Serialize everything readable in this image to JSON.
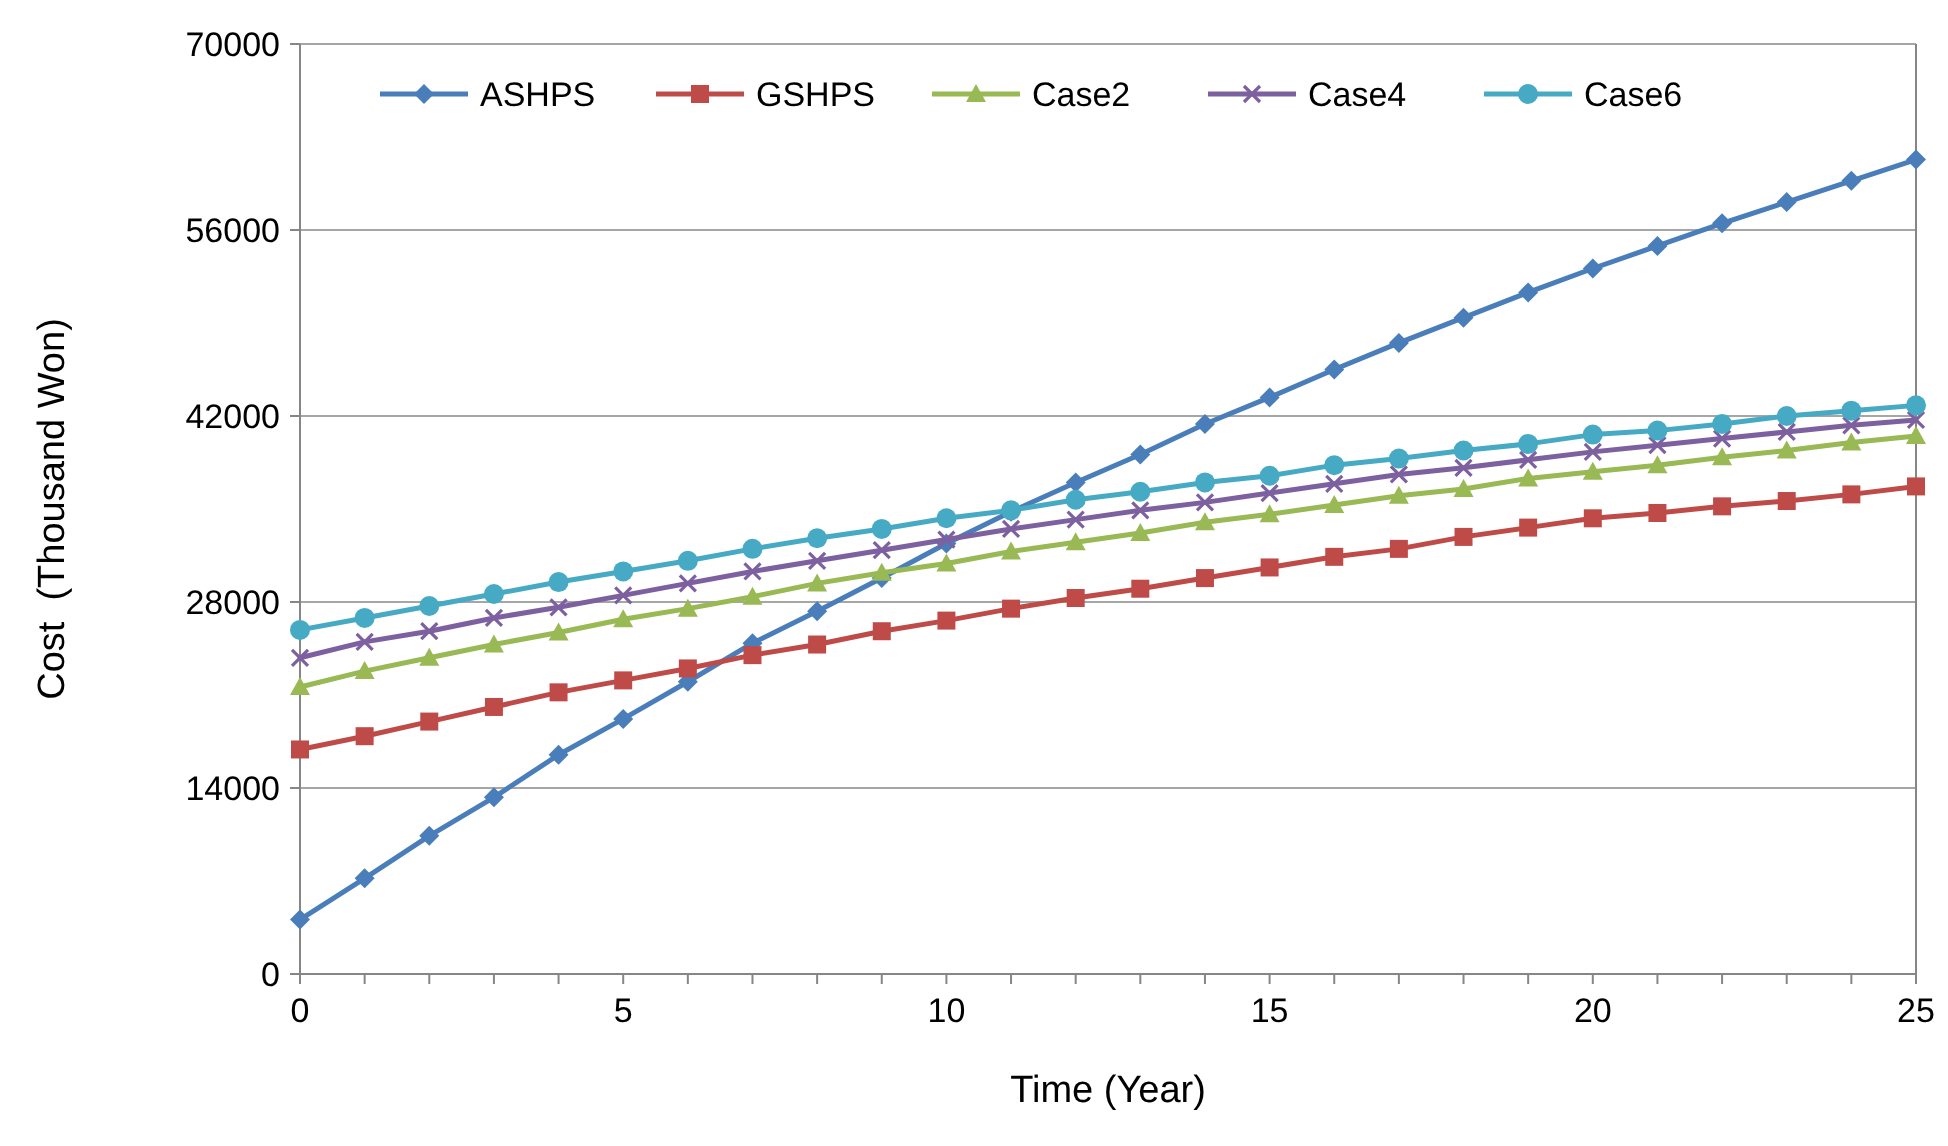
{
  "chart_data": {
    "type": "line",
    "xlabel": "Time (Year)",
    "ylabel": "Cost  (Thousand Won)",
    "x": [
      0,
      1,
      2,
      3,
      4,
      5,
      6,
      7,
      8,
      9,
      10,
      11,
      12,
      13,
      14,
      15,
      16,
      17,
      18,
      19,
      20,
      21,
      22,
      23,
      24,
      25
    ],
    "xlim": [
      0,
      25
    ],
    "xticks": [
      0,
      5,
      10,
      15,
      20,
      25
    ],
    "ylim": [
      0,
      70000
    ],
    "yticks": [
      0,
      14000,
      28000,
      42000,
      56000,
      70000
    ],
    "grid": "y",
    "legend": "top",
    "line_style": "solid",
    "series": [
      {
        "name": "ASHPS",
        "color": "#4a7ebb",
        "marker": "diamond",
        "values": [
          4100,
          7200,
          10400,
          13300,
          16500,
          19200,
          22000,
          24900,
          27300,
          29800,
          32400,
          34800,
          37000,
          39100,
          41400,
          43400,
          45500,
          47500,
          49400,
          51300,
          53100,
          54800,
          56500,
          58100,
          59700,
          61300
        ]
      },
      {
        "name": "GSHPS",
        "color": "#be4b48",
        "marker": "square",
        "values": [
          16900,
          17900,
          19000,
          20100,
          21200,
          22100,
          23000,
          24000,
          24800,
          25800,
          26600,
          27500,
          28300,
          29000,
          29800,
          30600,
          31400,
          32000,
          32900,
          33600,
          34300,
          34700,
          35200,
          35600,
          36100,
          36700
        ]
      },
      {
        "name": "Case2",
        "color": "#98b954",
        "marker": "triangle",
        "values": [
          21600,
          22800,
          23800,
          24800,
          25700,
          26700,
          27500,
          28400,
          29400,
          30200,
          30900,
          31800,
          32500,
          33200,
          34000,
          34600,
          35300,
          36000,
          36500,
          37300,
          37800,
          38300,
          38900,
          39400,
          40000,
          40500
        ]
      },
      {
        "name": "Case4",
        "color": "#7d60a0",
        "marker": "cross",
        "values": [
          23800,
          25000,
          25800,
          26800,
          27600,
          28500,
          29400,
          30300,
          31100,
          31900,
          32700,
          33500,
          34200,
          34900,
          35500,
          36200,
          36900,
          37600,
          38100,
          38700,
          39300,
          39800,
          40300,
          40800,
          41300,
          41700
        ]
      },
      {
        "name": "Case6",
        "color": "#46aac5",
        "marker": "circle",
        "values": [
          25900,
          26800,
          27700,
          28600,
          29500,
          30300,
          31100,
          32000,
          32800,
          33500,
          34300,
          34900,
          35700,
          36300,
          37000,
          37500,
          38300,
          38800,
          39400,
          39900,
          40600,
          40900,
          41400,
          42000,
          42400,
          42800
        ]
      }
    ]
  }
}
